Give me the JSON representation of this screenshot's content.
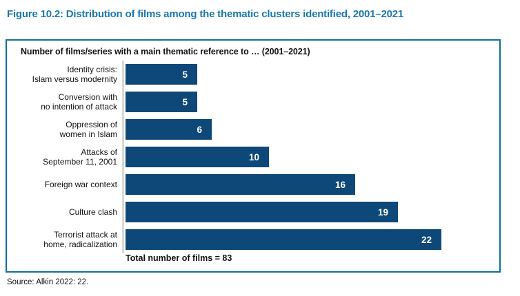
{
  "figure": {
    "title": "Figure 10.2: Distribution of films among the thematic clusters identified, 2001–2021",
    "source": "Source: Alkin 2022: 22."
  },
  "chart_data": {
    "type": "bar",
    "orientation": "horizontal",
    "title": "Number of films/series with a main thematic reference to … (2001–2021)",
    "categories": [
      "Identity crisis:\nIslam versus modernity",
      "Conversion with\nno intention of attack",
      "Oppression of\nwomen in Islam",
      "Attacks of\nSeptember 11, 2001",
      "Foreign war context",
      "Culture clash",
      "Terrorist attack at\nhome, radicalization"
    ],
    "values": [
      5,
      5,
      6,
      10,
      16,
      19,
      22
    ],
    "total_annotation": "Total number of films = 83",
    "xlim": [
      0,
      26.5
    ],
    "grid": false,
    "legend": false,
    "value_labels_position": "inside-end"
  },
  "colors": {
    "title_blue": "#1878ab",
    "bar_navy": "#0d4878",
    "box_border_teal": "#0e7093",
    "axis_gray": "#d9d9d9",
    "text_dark": "#111111"
  }
}
